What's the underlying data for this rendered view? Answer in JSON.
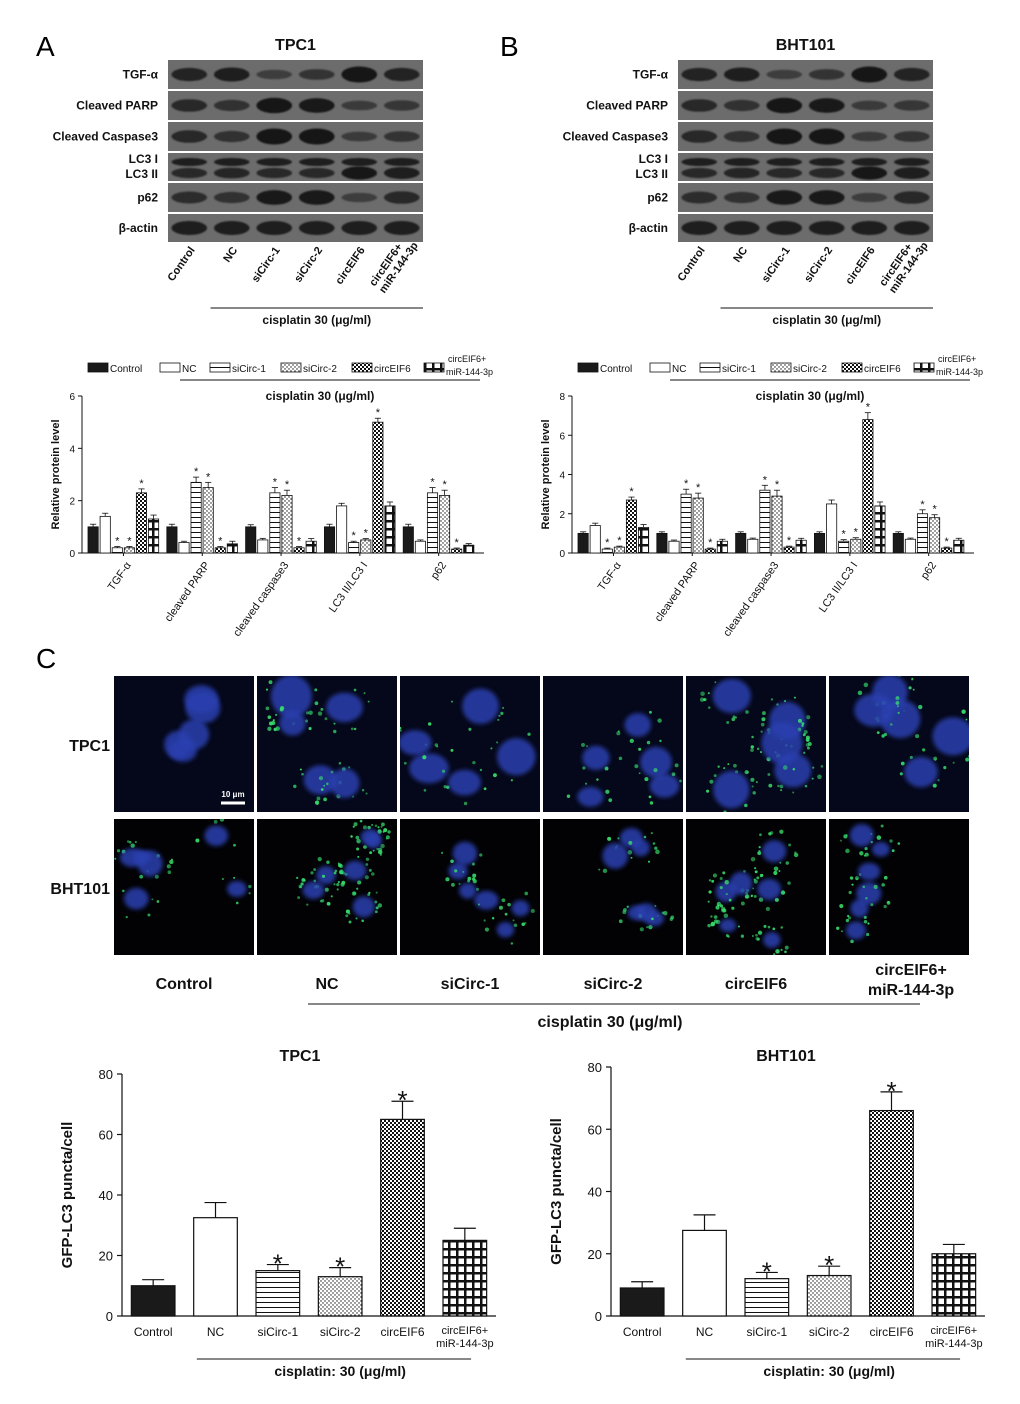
{
  "panel_letters": {
    "a": "A",
    "b": "B",
    "c": "C"
  },
  "colors": {
    "ink": "#111111",
    "nuclei": "#2a3fa8",
    "gfp": "#35d96a",
    "blot_bg": "#6b6b6b",
    "band": "#151515"
  },
  "blots": [
    {
      "title": "TPC1",
      "rows": [
        "TGF-α",
        "Cleaved PARP",
        "Cleaved Caspase3",
        "LC3 I",
        "LC3 II",
        "p62",
        "β-actin"
      ],
      "lanes": [
        "Control",
        "NC",
        "siCirc-1",
        "siCirc-2",
        "circEIF6",
        "circEIF6+ miR-144-3p"
      ],
      "treatment": "cisplatin 30 (μg/ml)"
    },
    {
      "title": "BHT101",
      "rows": [
        "TGF-α",
        "Cleaved PARP",
        "Cleaved Caspase3",
        "LC3 I",
        "LC3 II",
        "p62",
        "β-actin"
      ],
      "lanes": [
        "Control",
        "NC",
        "siCirc-1",
        "siCirc-2",
        "circEIF6",
        "circEIF6+ miR-144-3p"
      ],
      "treatment": "cisplatin 30 (μg/ml)"
    }
  ],
  "microscopy": {
    "rows": [
      "TPC1",
      "BHT101"
    ],
    "columns": [
      "Control",
      "NC",
      "siCirc-1",
      "siCirc-2",
      "circEIF6",
      "circEIF6+ miR-144-3p"
    ],
    "scale_bar": "10 μm",
    "treatment": "cisplatin 30 (μg/ml)"
  },
  "chart_data": [
    {
      "type": "bar",
      "panel": "A",
      "legend": [
        "Control",
        "NC",
        "siCirc-1",
        "siCirc-2",
        "circEIF6",
        "circEIF6+ miR-144-3p"
      ],
      "treatment": "cisplatin 30 (μg/ml)",
      "ylabel": "Relative protein level",
      "ylim": [
        0,
        6
      ],
      "yticks": [
        0,
        2,
        4,
        6
      ],
      "categories": [
        "TGF-α",
        "cleaved PARP",
        "cleaved caspase3",
        "LC3 II/LC3 I",
        "p62"
      ],
      "series": [
        {
          "name": "Control",
          "values": [
            1.0,
            1.0,
            1.0,
            1.0,
            1.0
          ],
          "errors": [
            0.1,
            0.1,
            0.08,
            0.1,
            0.1
          ]
        },
        {
          "name": "NC",
          "values": [
            1.4,
            0.4,
            0.5,
            1.8,
            0.45
          ],
          "errors": [
            0.12,
            0.05,
            0.06,
            0.1,
            0.05
          ]
        },
        {
          "name": "siCirc-1",
          "values": [
            0.2,
            2.7,
            2.3,
            0.4,
            2.3
          ],
          "errors": [
            0.05,
            0.2,
            0.2,
            0.05,
            0.2
          ]
        },
        {
          "name": "siCirc-2",
          "values": [
            0.2,
            2.5,
            2.2,
            0.5,
            2.2
          ],
          "errors": [
            0.05,
            0.2,
            0.2,
            0.05,
            0.2
          ]
        },
        {
          "name": "circEIF6",
          "values": [
            2.3,
            0.2,
            0.2,
            5.0,
            0.15
          ],
          "errors": [
            0.15,
            0.05,
            0.05,
            0.15,
            0.04
          ]
        },
        {
          "name": "circEIF6+ miR-144-3p",
          "values": [
            1.3,
            0.35,
            0.45,
            1.8,
            0.3
          ],
          "errors": [
            0.15,
            0.1,
            0.1,
            0.15,
            0.06
          ]
        }
      ],
      "significant": [
        [
          false,
          false,
          false,
          false,
          false
        ],
        [
          false,
          false,
          false,
          false,
          false
        ],
        [
          true,
          true,
          true,
          true,
          true
        ],
        [
          true,
          true,
          true,
          true,
          true
        ],
        [
          true,
          true,
          true,
          true,
          true
        ],
        [
          false,
          false,
          false,
          false,
          false
        ]
      ]
    },
    {
      "type": "bar",
      "panel": "B",
      "legend": [
        "Control",
        "NC",
        "siCirc-1",
        "siCirc-2",
        "circEIF6",
        "circEIF6+ miR-144-3p"
      ],
      "treatment": "cisplatin 30 (μg/ml)",
      "ylabel": "Relative protein level",
      "ylim": [
        0,
        8
      ],
      "yticks": [
        0,
        2,
        4,
        6,
        8
      ],
      "categories": [
        "TGF-α",
        "cleaved PARP",
        "cleaved caspase3",
        "LC3 II/LC3 I",
        "p62"
      ],
      "series": [
        {
          "name": "Control",
          "values": [
            1.0,
            1.0,
            1.0,
            1.0,
            1.0
          ],
          "errors": [
            0.08,
            0.08,
            0.08,
            0.08,
            0.08
          ]
        },
        {
          "name": "NC",
          "values": [
            1.4,
            0.6,
            0.7,
            2.5,
            0.7
          ],
          "errors": [
            0.12,
            0.06,
            0.06,
            0.2,
            0.06
          ]
        },
        {
          "name": "siCirc-1",
          "values": [
            0.2,
            3.0,
            3.2,
            0.6,
            2.0
          ],
          "errors": [
            0.05,
            0.25,
            0.25,
            0.08,
            0.2
          ]
        },
        {
          "name": "siCirc-2",
          "values": [
            0.3,
            2.8,
            2.9,
            0.7,
            1.8
          ],
          "errors": [
            0.05,
            0.25,
            0.3,
            0.08,
            0.15
          ]
        },
        {
          "name": "circEIF6",
          "values": [
            2.7,
            0.2,
            0.3,
            6.8,
            0.25
          ],
          "errors": [
            0.15,
            0.05,
            0.05,
            0.35,
            0.05
          ]
        },
        {
          "name": "circEIF6+ miR-144-3p",
          "values": [
            1.3,
            0.6,
            0.65,
            2.4,
            0.65
          ],
          "errors": [
            0.15,
            0.1,
            0.1,
            0.2,
            0.1
          ]
        }
      ],
      "significant": [
        [
          false,
          false,
          false,
          false,
          false
        ],
        [
          false,
          false,
          false,
          false,
          false
        ],
        [
          true,
          true,
          true,
          true,
          true
        ],
        [
          true,
          true,
          true,
          true,
          true
        ],
        [
          true,
          true,
          true,
          true,
          true
        ],
        [
          false,
          false,
          false,
          false,
          false
        ]
      ]
    },
    {
      "type": "bar",
      "panel": "C-TPC1",
      "title": "TPC1",
      "ylabel": "GFP-LC3 puncta/cell",
      "ylim": [
        0,
        80
      ],
      "yticks": [
        0,
        20,
        40,
        60,
        80
      ],
      "categories": [
        "Control",
        "NC",
        "siCirc-1",
        "siCirc-2",
        "circEIF6",
        "circEIF6+ miR-144-3p"
      ],
      "values": [
        10,
        32.5,
        15,
        13,
        65,
        25
      ],
      "errors": [
        2,
        5,
        2,
        3,
        6,
        4
      ],
      "significant": [
        false,
        false,
        true,
        true,
        true,
        false
      ],
      "treatment": "cisplatin: 30 (μg/ml)"
    },
    {
      "type": "bar",
      "panel": "C-BHT101",
      "title": "BHT101",
      "ylabel": "GFP-LC3 puncta/cell",
      "ylim": [
        0,
        80
      ],
      "yticks": [
        0,
        20,
        40,
        60,
        80
      ],
      "categories": [
        "Control",
        "NC",
        "siCirc-1",
        "siCirc-2",
        "circEIF6",
        "circEIF6+ miR-144-3p"
      ],
      "values": [
        9,
        27.5,
        12,
        13,
        66,
        20
      ],
      "errors": [
        2,
        5,
        2,
        3,
        6,
        3
      ],
      "significant": [
        false,
        false,
        true,
        true,
        true,
        false
      ],
      "treatment": "cisplatin: 30 (μg/ml)"
    }
  ]
}
